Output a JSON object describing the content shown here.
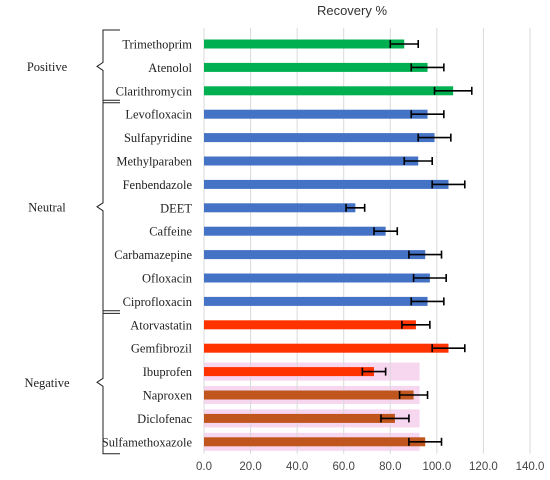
{
  "chart_data": {
    "type": "bar",
    "orientation": "horizontal",
    "title": "Recovery %",
    "xlabel": "",
    "ylabel": "",
    "xlim": [
      0,
      140
    ],
    "xticks": [
      "0.0",
      "20.0",
      "40.0",
      "60.0",
      "80.0",
      "100.0",
      "120.0",
      "140.0"
    ],
    "grid": "vertical",
    "groups": [
      {
        "label": "Positive",
        "color": "#00b050",
        "start": 0,
        "end": 2
      },
      {
        "label": "Neutral",
        "color": "#4472c4",
        "start": 3,
        "end": 11
      },
      {
        "label": "Negative",
        "color": "#ff3300",
        "start": 12,
        "end": 17
      }
    ],
    "categories": [
      "Trimethoprim",
      "Atenolol",
      "Clarithromycin",
      "Levofloxacin",
      "Sulfapyridine",
      "Methylparaben",
      "Fenbendazole",
      "DEET",
      "Caffeine",
      "Carbamazepine",
      "Ofloxacin",
      "Ciprofloxacin",
      "Atorvastatin",
      "Gemfibrozil",
      "Ibuprofen",
      "Naproxen",
      "Diclofenac",
      "Sulfamethoxazole"
    ],
    "values": [
      86,
      96,
      107,
      96,
      99,
      92,
      105,
      65,
      78,
      95,
      97,
      96,
      91,
      105,
      73,
      90,
      82,
      95
    ],
    "errors": [
      6,
      7,
      8,
      7,
      7,
      6,
      7,
      4,
      5,
      7,
      7,
      7,
      6,
      7,
      5,
      6,
      6,
      7
    ],
    "bar_colors": [
      "#00b050",
      "#00b050",
      "#00b050",
      "#4472c4",
      "#4472c4",
      "#4472c4",
      "#4472c4",
      "#4472c4",
      "#4472c4",
      "#4472c4",
      "#4472c4",
      "#4472c4",
      "#ff3300",
      "#ff3300",
      "#ff3300",
      "#c0561e",
      "#c0561e",
      "#c0561e"
    ],
    "highlight_color": "#f7d6f0",
    "highlighted": [
      14,
      15,
      16,
      17
    ]
  }
}
